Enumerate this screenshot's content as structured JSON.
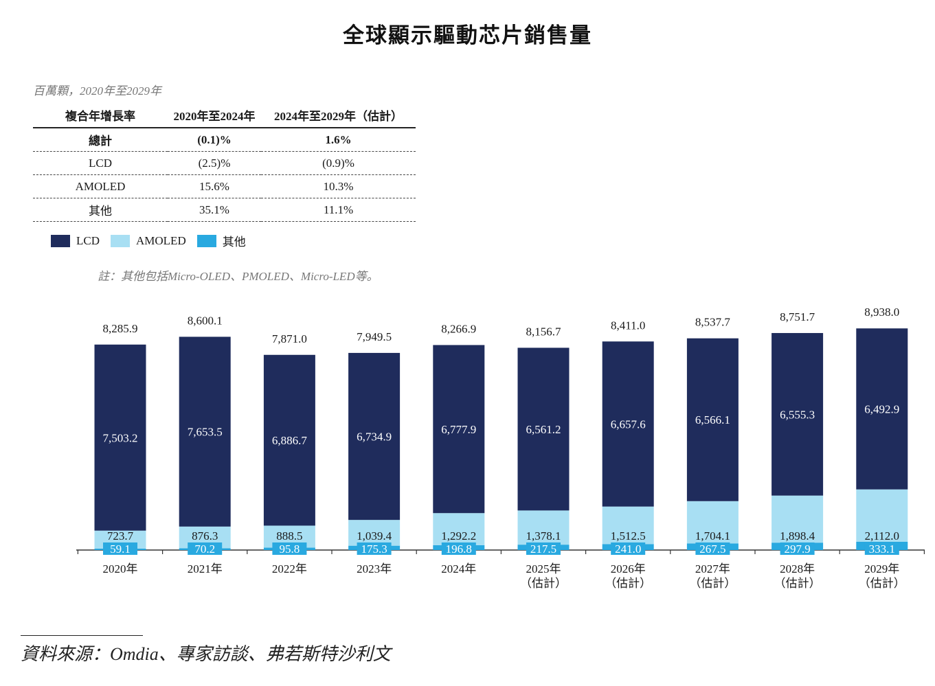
{
  "title": "全球顯示驅動芯片銷售量",
  "unit_note": "百萬顆，2020年至2029年",
  "cagr_table": {
    "headers": [
      "複合年增長率",
      "2020年至2024年",
      "2024年至2029年（估計）"
    ],
    "rows": [
      {
        "label": "總計",
        "p1": "(0.1)%",
        "p2": "1.6%"
      },
      {
        "label": "LCD",
        "p1": "(2.5)%",
        "p2": "(0.9)%"
      },
      {
        "label": "AMOLED",
        "p1": "15.6%",
        "p2": "10.3%"
      },
      {
        "label": "其他",
        "p1": "35.1%",
        "p2": "11.1%"
      }
    ]
  },
  "legend": [
    {
      "label": "LCD",
      "color": "#1f2c5c"
    },
    {
      "label": "AMOLED",
      "color": "#a8dff3"
    },
    {
      "label": "其他",
      "color": "#29a9e0"
    }
  ],
  "footnote": "註：其他包括Micro-OLED、PMOLED、Micro-LED等。",
  "source": "資料來源：Omdia、專家訪談、弗若斯特沙利文",
  "chart_data": {
    "type": "bar",
    "stacked": true,
    "title": "全球顯示驅動芯片銷售量",
    "ylabel": "百萬顆",
    "categories": [
      [
        "2020年"
      ],
      [
        "2021年"
      ],
      [
        "2022年"
      ],
      [
        "2023年"
      ],
      [
        "2024年"
      ],
      [
        "2025年",
        "（估計）"
      ],
      [
        "2026年",
        "（估計）"
      ],
      [
        "2027年",
        "（估計）"
      ],
      [
        "2028年",
        "（估計）"
      ],
      [
        "2029年",
        "（估計）"
      ]
    ],
    "series": [
      {
        "name": "其他",
        "color": "#29a9e0",
        "values": [
          59.1,
          70.2,
          95.8,
          175.3,
          196.8,
          217.5,
          241.0,
          267.5,
          297.9,
          333.1
        ],
        "labels": [
          "59.1",
          "70.2",
          "95.8",
          "175.3",
          "196.8",
          "217.5",
          "241.0",
          "267.5",
          "297.9",
          "333.1"
        ]
      },
      {
        "name": "AMOLED",
        "color": "#a8dff3",
        "values": [
          723.7,
          876.3,
          888.5,
          1039.4,
          1292.2,
          1378.1,
          1512.5,
          1704.1,
          1898.4,
          2112.0
        ],
        "labels": [
          "723.7",
          "876.3",
          "888.5",
          "1,039.4",
          "1,292.2",
          "1,378.1",
          "1,512.5",
          "1,704.1",
          "1,898.4",
          "2,112.0"
        ]
      },
      {
        "name": "LCD",
        "color": "#1f2c5c",
        "values": [
          7503.2,
          7653.5,
          6886.7,
          6734.9,
          6777.9,
          6561.2,
          6657.6,
          6566.1,
          6555.3,
          6492.9
        ],
        "labels": [
          "7,503.2",
          "7,653.5",
          "6,886.7",
          "6,734.9",
          "6,777.9",
          "6,561.2",
          "6,657.6",
          "6,566.1",
          "6,555.3",
          "6,492.9"
        ]
      }
    ],
    "totals": [
      8285.9,
      8600.1,
      7871.0,
      7949.5,
      8266.9,
      8156.7,
      8411.0,
      8537.7,
      8751.7,
      8938.0
    ],
    "total_labels": [
      "8,285.9",
      "8,600.1",
      "7,871.0",
      "7,949.5",
      "8,266.9",
      "8,156.7",
      "8,411.0",
      "8,537.7",
      "8,751.7",
      "8,938.0"
    ],
    "ylim": [
      0,
      9000
    ],
    "grid": false,
    "legend_position": "top-left"
  }
}
